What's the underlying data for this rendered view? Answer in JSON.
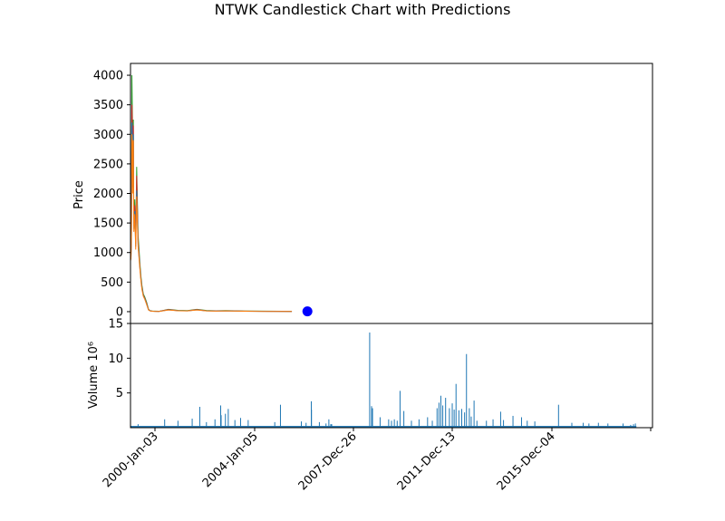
{
  "chart_data": {
    "type": "candlestick",
    "title": "NTWK Candlestick Chart with Predictions",
    "price_panel": {
      "ylabel": "Price",
      "ylim": [
        -200,
        4200
      ],
      "yticks": [
        0,
        500,
        1000,
        1500,
        2000,
        2500,
        3000,
        3500,
        4000
      ],
      "series": [
        {
          "name": "",
          "color": "#2ca02c",
          "x": [
            0.0,
            0.05,
            0.1,
            0.15,
            0.2,
            0.25,
            0.3,
            0.35,
            0.45,
            0.55,
            0.65,
            0.8,
            1.0,
            1.1,
            1.2,
            1.35,
            1.5,
            1.7,
            1.9,
            2.1,
            2.3,
            2.6,
            3.0,
            4.0,
            5.0,
            6.0,
            7.0,
            8.0,
            9.0,
            10.0,
            12.0,
            14.0,
            16.0,
            17.0
          ],
          "y": [
            900,
            960,
            1500,
            4000,
            3300,
            2300,
            3250,
            1500,
            1900,
            1200,
            2450,
            1300,
            800,
            600,
            450,
            300,
            250,
            160,
            40,
            15,
            10,
            8,
            6,
            40,
            22,
            18,
            40,
            20,
            15,
            18,
            10,
            8,
            6,
            5
          ]
        },
        {
          "name": "",
          "color": "#d62728",
          "x": [
            0.0,
            0.05,
            0.1,
            0.15,
            0.2,
            0.25,
            0.3,
            0.35,
            0.45,
            0.55,
            0.65,
            0.8,
            1.0,
            1.1,
            1.2,
            1.35,
            1.5,
            1.7,
            1.9,
            2.1,
            2.3,
            2.6,
            3.0,
            4.0,
            5.0,
            6.0,
            7.0,
            8.0,
            9.0,
            10.0,
            12.0,
            14.0,
            16.0,
            17.0
          ],
          "y": [
            880,
            930,
            1400,
            3500,
            3100,
            2200,
            3150,
            1450,
            1800,
            1150,
            2300,
            1200,
            750,
            560,
            420,
            280,
            230,
            140,
            35,
            12,
            8,
            6,
            5,
            35,
            18,
            15,
            35,
            15,
            12,
            15,
            8,
            6,
            5,
            4
          ]
        },
        {
          "name": "",
          "color": "#1f77b4",
          "x": [
            0.0,
            0.05,
            0.1,
            0.15,
            0.2,
            0.25,
            0.3,
            0.35,
            0.45,
            0.55,
            0.65,
            0.8,
            1.0,
            1.1,
            1.2,
            1.35,
            1.5,
            1.7,
            1.9,
            2.1,
            2.3,
            2.6,
            3.0,
            4.0,
            5.0,
            6.0,
            7.0,
            8.0,
            9.0,
            10.0,
            12.0,
            14.0,
            16.0,
            17.0
          ],
          "y": [
            870,
            920,
            1350,
            3200,
            2950,
            2100,
            3000,
            1400,
            1700,
            1100,
            2050,
            1150,
            720,
            540,
            400,
            270,
            220,
            130,
            30,
            11,
            7,
            5,
            4,
            30,
            16,
            13,
            30,
            13,
            10,
            13,
            7,
            5,
            4,
            3
          ]
        },
        {
          "name": "",
          "color": "#ff7f0e",
          "x": [
            0.0,
            0.05,
            0.1,
            0.15,
            0.2,
            0.25,
            0.3,
            0.35,
            0.45,
            0.55,
            0.65,
            0.8,
            1.0,
            1.1,
            1.2,
            1.35,
            1.5,
            1.7,
            1.9,
            2.1,
            2.3,
            2.6,
            3.0,
            4.0,
            5.0,
            6.0,
            7.0,
            8.0,
            9.0,
            10.0,
            12.0,
            14.0,
            16.0,
            17.0
          ],
          "y": [
            860,
            900,
            1300,
            3000,
            2850,
            2000,
            2900,
            1350,
            1650,
            1050,
            1950,
            1100,
            700,
            520,
            380,
            260,
            210,
            120,
            28,
            10,
            6,
            4,
            3,
            28,
            15,
            12,
            28,
            12,
            9,
            12,
            6,
            4,
            3,
            3
          ]
        }
      ],
      "prediction": {
        "x": 18.64,
        "y": 5,
        "color": "#0000ff"
      }
    },
    "volume_panel": {
      "ylabel": "Volume  10⁶",
      "ylim": [
        0,
        15
      ],
      "yticks": [
        5,
        10,
        15
      ],
      "color": "#1f77b4",
      "spikes": [
        [
          0.8,
          0.5
        ],
        [
          3.6,
          1.2
        ],
        [
          5.0,
          1.0
        ],
        [
          6.5,
          1.3
        ],
        [
          7.3,
          3.0
        ],
        [
          8.0,
          0.8
        ],
        [
          8.9,
          1.2
        ],
        [
          9.5,
          3.2
        ],
        [
          9.55,
          1.8
        ],
        [
          10.0,
          2.0
        ],
        [
          10.3,
          2.7
        ],
        [
          11.0,
          1.1
        ],
        [
          11.6,
          1.4
        ],
        [
          12.4,
          1.1
        ],
        [
          15.2,
          0.8
        ],
        [
          15.8,
          3.3
        ],
        [
          18.0,
          0.9
        ],
        [
          18.5,
          0.7
        ],
        [
          19.05,
          3.8
        ],
        [
          19.07,
          2.6
        ],
        [
          19.9,
          0.8
        ],
        [
          20.6,
          0.6
        ],
        [
          20.9,
          1.2
        ],
        [
          21.1,
          0.5
        ],
        [
          21.2,
          0.5
        ],
        [
          25.2,
          13.7
        ],
        [
          25.4,
          3.1
        ],
        [
          25.5,
          2.8
        ],
        [
          26.3,
          1.5
        ],
        [
          27.2,
          1.2
        ],
        [
          27.5,
          1.0
        ],
        [
          27.8,
          1.2
        ],
        [
          28.1,
          1.0
        ],
        [
          28.4,
          5.3
        ],
        [
          28.8,
          2.4
        ],
        [
          29.6,
          1.0
        ],
        [
          30.4,
          1.2
        ],
        [
          31.3,
          1.5
        ],
        [
          31.8,
          1.0
        ],
        [
          32.3,
          2.8
        ],
        [
          32.5,
          3.6
        ],
        [
          32.7,
          4.6
        ],
        [
          32.9,
          3.2
        ],
        [
          33.2,
          4.3
        ],
        [
          33.6,
          2.8
        ],
        [
          33.9,
          3.5
        ],
        [
          34.1,
          2.6
        ],
        [
          34.3,
          6.3
        ],
        [
          34.6,
          2.5
        ],
        [
          34.9,
          2.7
        ],
        [
          35.2,
          2.2
        ],
        [
          35.4,
          10.6
        ],
        [
          35.7,
          2.8
        ],
        [
          35.9,
          1.6
        ],
        [
          36.2,
          3.9
        ],
        [
          36.5,
          1.0
        ],
        [
          37.5,
          1.0
        ],
        [
          38.2,
          1.2
        ],
        [
          39.0,
          2.3
        ],
        [
          39.3,
          1.1
        ],
        [
          40.3,
          1.7
        ],
        [
          41.2,
          1.5
        ],
        [
          41.8,
          1.0
        ],
        [
          42.6,
          0.9
        ],
        [
          45.1,
          3.3
        ],
        [
          46.5,
          0.7
        ],
        [
          47.7,
          0.7
        ],
        [
          48.3,
          0.6
        ],
        [
          49.3,
          0.7
        ],
        [
          50.3,
          0.6
        ],
        [
          51.9,
          0.6
        ],
        [
          52.7,
          0.4
        ],
        [
          53.0,
          0.5
        ],
        [
          53.2,
          0.6
        ]
      ]
    },
    "x_axis": {
      "tick_labels": [
        "2000-Jan-03",
        "2004-Jan-05",
        "2007-Dec-26",
        "2011-Dec-13",
        "2015-Dec-04",
        ""
      ]
    }
  }
}
